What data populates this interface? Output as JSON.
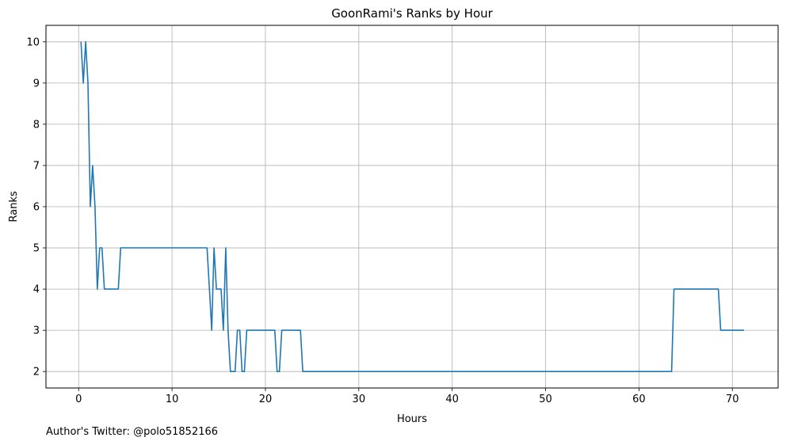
{
  "chart_data": {
    "type": "line",
    "title": "GoonRami's Ranks by Hour",
    "xlabel": "Hours",
    "ylabel": "Ranks",
    "xlim": [
      -3.5,
      74.9
    ],
    "ylim": [
      1.6,
      10.4
    ],
    "xticks": [
      0,
      10,
      20,
      30,
      40,
      50,
      60,
      70
    ],
    "yticks": [
      2,
      3,
      4,
      5,
      6,
      7,
      8,
      9,
      10
    ],
    "grid": true,
    "line_color": "#1f77b4",
    "series": [
      {
        "x": [
          0.25,
          0.5,
          0.75,
          1.0,
          1.25,
          1.5,
          1.75,
          2.0,
          2.25,
          2.5,
          2.75,
          3.0,
          3.25,
          3.5,
          3.75,
          4.0,
          4.25,
          4.5,
          4.75,
          13.75,
          14.0,
          14.25,
          14.5,
          14.75,
          15.0,
          15.25,
          15.5,
          15.75,
          16.0,
          16.25,
          16.5,
          16.75,
          17.0,
          17.25,
          17.5,
          17.75,
          18.0,
          18.25,
          21.0,
          21.25,
          21.5,
          21.75,
          22.0,
          23.75,
          24.0,
          63.5,
          63.75,
          68.5,
          68.75,
          71.25
        ],
        "y": [
          10,
          9,
          10,
          9,
          6,
          7,
          6,
          4,
          5,
          5,
          4,
          4,
          4,
          4,
          4,
          4,
          4,
          5,
          5,
          5,
          4,
          3,
          5,
          4,
          4,
          4,
          3,
          5,
          3,
          2,
          2,
          2,
          3,
          3,
          2,
          2,
          3,
          3,
          3,
          2,
          2,
          3,
          3,
          3,
          2,
          2,
          4,
          4,
          3,
          3
        ]
      }
    ]
  },
  "footer": {
    "note": "Author's Twitter: @polo51852166"
  }
}
